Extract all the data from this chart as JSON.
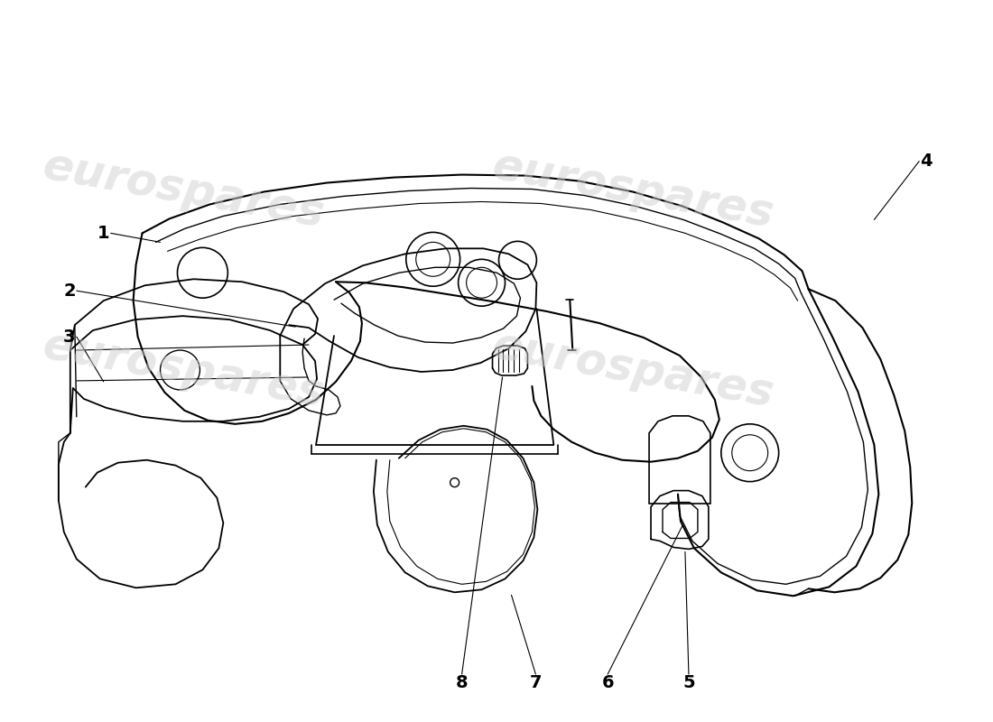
{
  "background_color": "#ffffff",
  "line_color": "#000000",
  "watermark_color": "#d0d0d0",
  "watermark_text": "eurospares",
  "label_fontsize": 14,
  "watermark_fontsize": 36
}
